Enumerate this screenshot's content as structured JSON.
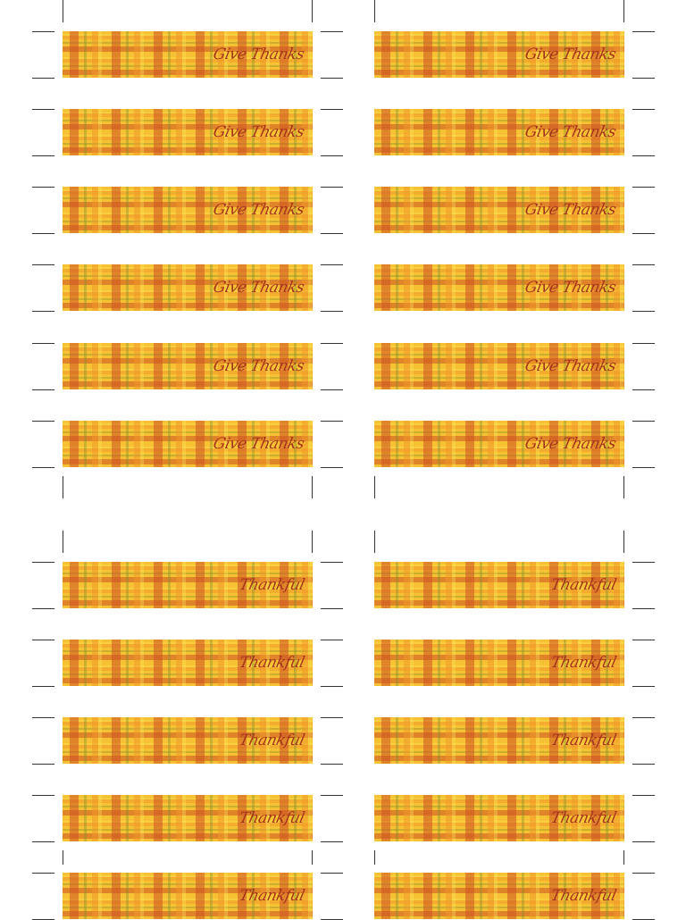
{
  "sections": [
    {
      "label_text": "Give Thanks"
    },
    {
      "label_text": "Thankful"
    }
  ],
  "colors": {
    "plaid_base": "#f6c233",
    "plaid_orange": "#cd5223",
    "plaid_green": "#788c28",
    "text": "#a4341c",
    "cut_marks": "#333333"
  }
}
